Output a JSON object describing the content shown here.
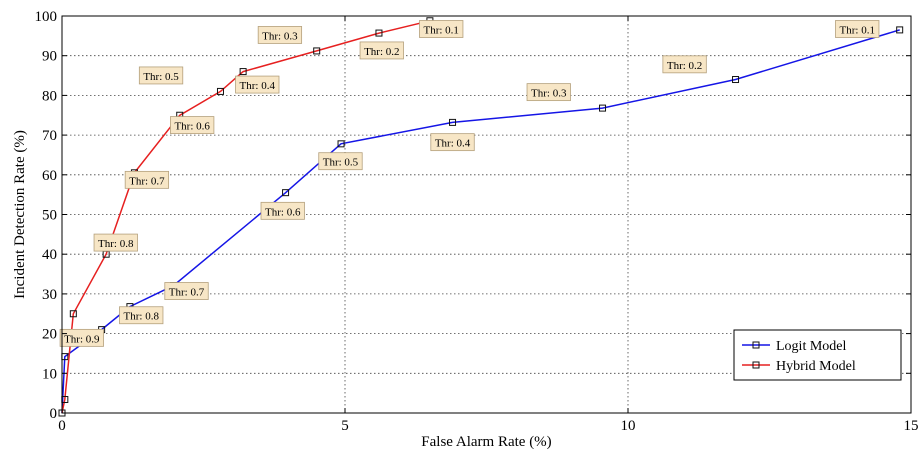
{
  "chart_data": {
    "type": "line",
    "xlabel": "False Alarm Rate (%)",
    "ylabel": "Incident Detection Rate (%)",
    "xlim": [
      0,
      15
    ],
    "ylim": [
      0,
      100
    ],
    "xticks": [
      0,
      5,
      10,
      15
    ],
    "yticks": [
      0,
      10,
      20,
      30,
      40,
      50,
      60,
      70,
      80,
      90,
      100
    ],
    "grid": true,
    "legend_position": "bottom-right",
    "series": [
      {
        "name": "Logit Model",
        "color": "#1515e6",
        "x": [
          0,
          0.05,
          0.7,
          1.2,
          1.97,
          3.95,
          4.93,
          6.9,
          9.55,
          11.9,
          14.8
        ],
        "y": [
          0,
          14.2,
          21,
          26.8,
          32.1,
          55.5,
          67.8,
          73.2,
          76.8,
          84,
          96.5
        ]
      },
      {
        "name": "Hybrid Model",
        "color": "#e62020",
        "x": [
          0,
          0.05,
          0.2,
          0.78,
          1.28,
          2.08,
          2.8,
          3.2,
          4.5,
          5.6,
          6.5
        ],
        "y": [
          0,
          3.4,
          25,
          40,
          60.5,
          75,
          81,
          86,
          91.2,
          95.7,
          98.8
        ]
      }
    ],
    "annotations": [
      {
        "text": "Thr: 0.9",
        "x": 0.35,
        "y": 18.8
      },
      {
        "text": "Thr: 0.8",
        "x": 1.4,
        "y": 24.5
      },
      {
        "text": "Thr: 0.7",
        "x": 2.2,
        "y": 30.6
      },
      {
        "text": "Thr: 0.6",
        "x": 3.9,
        "y": 50.8
      },
      {
        "text": "Thr: 0.5",
        "x": 4.92,
        "y": 63.3
      },
      {
        "text": "Thr: 0.4",
        "x": 6.9,
        "y": 68.1
      },
      {
        "text": "Thr: 0.3",
        "x": 8.6,
        "y": 80.7
      },
      {
        "text": "Thr: 0.2",
        "x": 11,
        "y": 87.7
      },
      {
        "text": "Thr: 0.1",
        "x": 14.05,
        "y": 96.6
      },
      {
        "text": "Thr: 0.8",
        "x": 0.95,
        "y": 42.8
      },
      {
        "text": "Thr: 0.7",
        "x": 1.5,
        "y": 58.6
      },
      {
        "text": "Thr: 0.6",
        "x": 2.3,
        "y": 72.4
      },
      {
        "text": "Thr: 0.5",
        "x": 1.75,
        "y": 84.9
      },
      {
        "text": "Thr: 0.4",
        "x": 3.45,
        "y": 82.6
      },
      {
        "text": "Thr: 0.3",
        "x": 3.85,
        "y": 95.1
      },
      {
        "text": "Thr: 0.2",
        "x": 5.65,
        "y": 91.2
      },
      {
        "text": "Thr: 0.1",
        "x": 6.7,
        "y": 96.6
      }
    ]
  }
}
